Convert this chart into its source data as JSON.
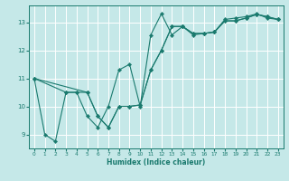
{
  "xlabel": "Humidex (Indice chaleur)",
  "bg_color": "#c5e8e8",
  "grid_color": "#ffffff",
  "line_color": "#1a7a6e",
  "xlim": [
    -0.5,
    23.5
  ],
  "ylim": [
    8.5,
    13.6
  ],
  "xticks": [
    0,
    1,
    2,
    3,
    4,
    5,
    6,
    7,
    8,
    9,
    10,
    11,
    12,
    13,
    14,
    15,
    16,
    17,
    18,
    19,
    20,
    21,
    22,
    23
  ],
  "yticks": [
    9,
    10,
    11,
    12,
    13
  ],
  "curve1_x": [
    0,
    1,
    2,
    3,
    4,
    5,
    6,
    7,
    8,
    9,
    10,
    11,
    12,
    13,
    14,
    15,
    16,
    17,
    18,
    19,
    20,
    21,
    22,
    23
  ],
  "curve1_y": [
    11.0,
    9.0,
    8.75,
    10.5,
    10.5,
    9.65,
    9.25,
    10.0,
    11.3,
    11.5,
    10.0,
    12.55,
    13.3,
    12.55,
    12.85,
    12.55,
    12.6,
    12.65,
    13.1,
    13.15,
    13.2,
    13.3,
    13.15,
    13.1
  ],
  "curve2_x": [
    0,
    3,
    4,
    5,
    6,
    7,
    8,
    9,
    10,
    11,
    12,
    13,
    14,
    15,
    16,
    17,
    18,
    19,
    20,
    21,
    22,
    23
  ],
  "curve2_y": [
    11.0,
    10.5,
    10.5,
    10.5,
    9.65,
    9.25,
    10.0,
    10.0,
    10.05,
    11.3,
    12.0,
    12.85,
    12.85,
    12.6,
    12.6,
    12.65,
    13.05,
    13.05,
    13.15,
    13.28,
    13.2,
    13.1
  ],
  "curve3_x": [
    0,
    5,
    6,
    7,
    8,
    9,
    10,
    11,
    12,
    13,
    14,
    15,
    16,
    17,
    18,
    19,
    20,
    21,
    22,
    23
  ],
  "curve3_y": [
    11.0,
    10.5,
    9.65,
    9.25,
    10.0,
    10.0,
    10.05,
    11.3,
    12.0,
    12.85,
    12.85,
    12.6,
    12.6,
    12.65,
    13.05,
    13.05,
    13.15,
    13.28,
    13.2,
    13.1
  ]
}
